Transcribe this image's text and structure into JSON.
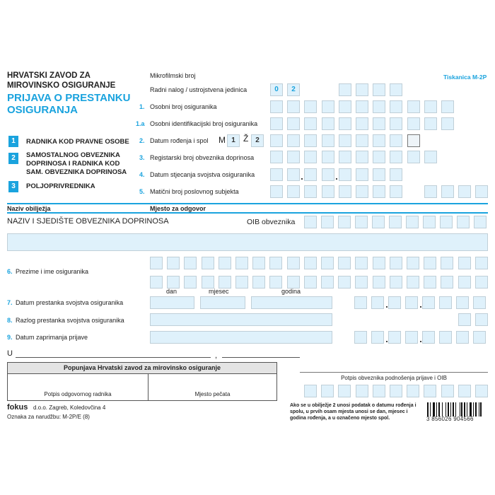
{
  "header": {
    "org_line1": "HRVATSKI ZAVOD ZA",
    "org_line2": "MIROVINSKO OSIGURANJE",
    "title_line1": "PRIJAVA O PRESTANKU",
    "title_line2": "OSIGURANJA",
    "form_code": "Tiskanica M-2P"
  },
  "categories": [
    {
      "num": "1",
      "label": "RADNIKA KOD PRAVNE OSOBE"
    },
    {
      "num": "2",
      "label": "SAMOSTALNOG OBVEZNIKA DOPRINOSA I RADNIKA KOD SAM. OBVEZNIKA DOPRINOSA"
    },
    {
      "num": "3",
      "label": "POLJOPRIVREDNIKA"
    }
  ],
  "top_fields": {
    "microfilm": "Mikrofilmski broj",
    "work_order": "Radni nalog / ustrojstvena jedinica",
    "work_order_values": [
      "0",
      "2"
    ],
    "f1": {
      "num": "1.",
      "label": "Osobni broj osiguranika"
    },
    "f1a": {
      "num": "1.a",
      "label": "Osobni identifikacijski broj osiguranika"
    },
    "f2": {
      "num": "2.",
      "label": "Datum rođenja i spol",
      "male": "M",
      "male_code": "1",
      "female": "Ž",
      "female_code": "2"
    },
    "f3": {
      "num": "3.",
      "label": "Registarski broj obveznika doprinosa"
    },
    "f4": {
      "num": "4.",
      "label": "Datum stjecanja svojstva osiguranika"
    },
    "f5": {
      "num": "5.",
      "label": "Matični broj poslovnog subjekta"
    }
  },
  "section": {
    "col1": "Naziv obilježja",
    "col2": "Mjesto za odgovor",
    "name_label": "NAZIV I SJEDIŠTE OBVEZNIKA DOPRINOSA",
    "oib_label": "OIB obveznika",
    "f6": {
      "num": "6.",
      "label": "Prezime i ime osiguranika"
    },
    "date_labels": {
      "day": "dan",
      "month": "mjesec",
      "year": "godina"
    },
    "f7": {
      "num": "7.",
      "label": "Datum prestanka svojstva osiguranika"
    },
    "f8": {
      "num": "8.",
      "label": "Razlog prestanka svojstva osiguranika"
    },
    "f9": {
      "num": "9.",
      "label": "Datum zaprimanja prijave"
    }
  },
  "footer": {
    "place_prefix": "U",
    "place_comma": ",",
    "hzmo_header": "Popunjava Hrvatski zavod za mirovinsko osiguranje",
    "sig_official": "Potpis odgovornog radnika",
    "stamp": "Mjesto pečata",
    "sig_payer": "Potpis obveznika podnošenja prijave i OIB",
    "publisher_brand": "fokus",
    "publisher_addr": "d.o.o. Zagreb, Koledovčina 4",
    "order_code": "Oznaka za narudžbu: M-2P/E (8)",
    "note": "Ako se u obilježje 2 unosi podatak o datumu rođenja i spolu, u prvih osam mjesta unosi se dan, mjesec i godina rođenja, a u označeno mjesto spol.",
    "barcode_number": "3 856026 904566"
  },
  "colors": {
    "accent": "#1aa3de",
    "box_fill": "#dff1fb"
  }
}
